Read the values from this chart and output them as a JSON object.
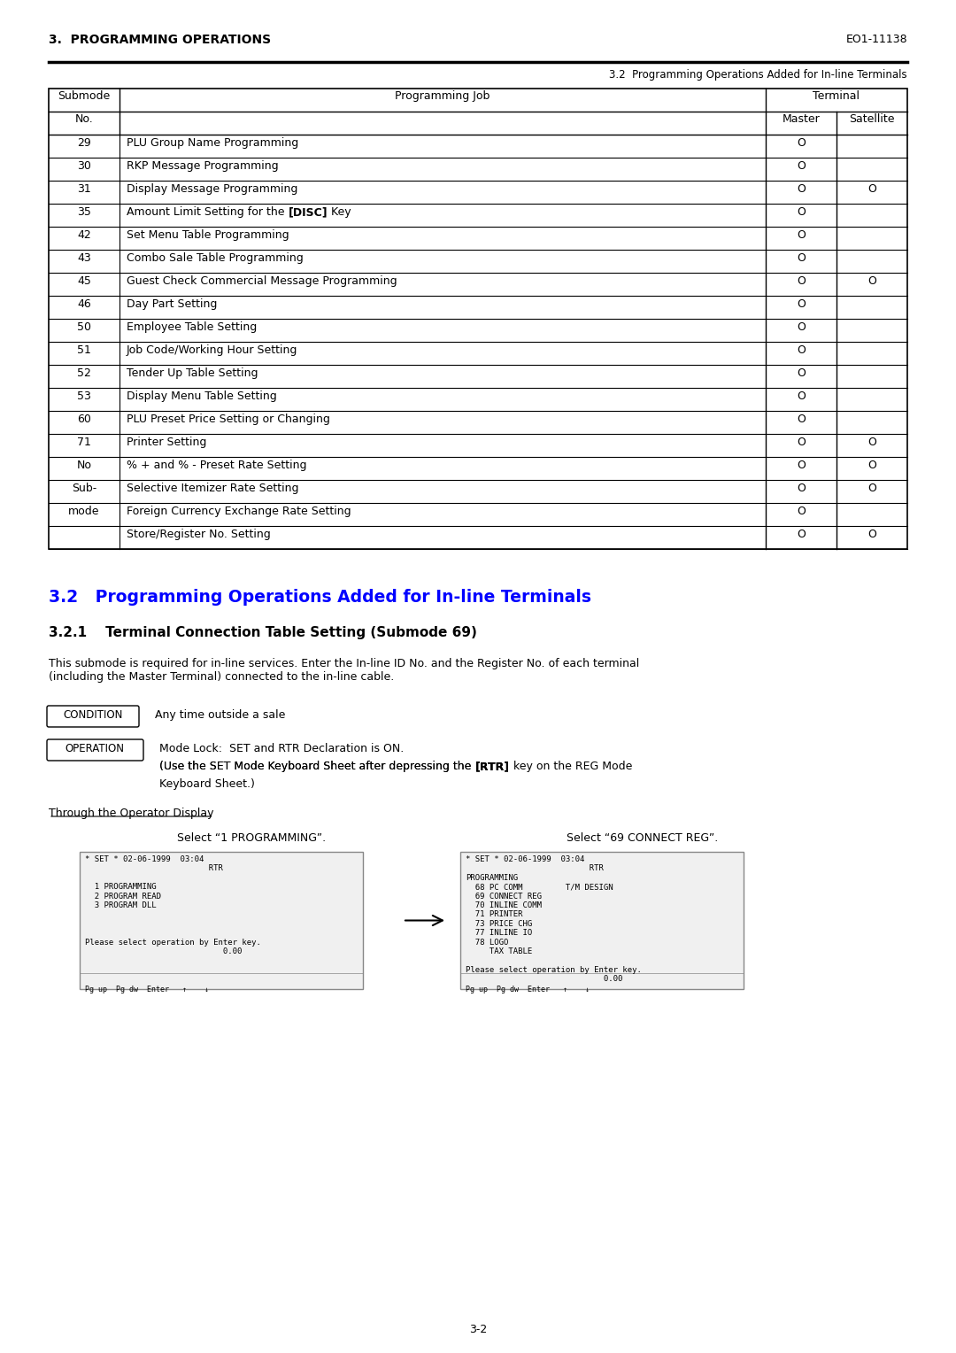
{
  "header_left": "3.  PROGRAMMING OPERATIONS",
  "header_right": "EO1-11138",
  "subheader": "3.2  Programming Operations Added for In-line Terminals",
  "table_header_row1": [
    "Submode",
    "Programming Job",
    "Terminal"
  ],
  "table_header_row2": [
    "No.",
    "",
    "Master",
    "Satellite"
  ],
  "table_rows": [
    [
      "29",
      "PLU Group Name Programming",
      "O",
      ""
    ],
    [
      "30",
      "RKP Message Programming",
      "O",
      ""
    ],
    [
      "31",
      "Display Message Programming",
      "O",
      "O"
    ],
    [
      "35",
      "Amount Limit Setting for the [DISC] Key",
      "O",
      ""
    ],
    [
      "42",
      "Set Menu Table Programming",
      "O",
      ""
    ],
    [
      "43",
      "Combo Sale Table Programming",
      "O",
      ""
    ],
    [
      "45",
      "Guest Check Commercial Message Programming",
      "O",
      "O"
    ],
    [
      "46",
      "Day Part Setting",
      "O",
      ""
    ],
    [
      "50",
      "Employee Table Setting",
      "O",
      ""
    ],
    [
      "51",
      "Job Code/Working Hour Setting",
      "O",
      ""
    ],
    [
      "52",
      "Tender Up Table Setting",
      "O",
      ""
    ],
    [
      "53",
      "Display Menu Table Setting",
      "O",
      ""
    ],
    [
      "60",
      "PLU Preset Price Setting or Changing",
      "O",
      ""
    ],
    [
      "71",
      "Printer Setting",
      "O",
      "O"
    ],
    [
      "No",
      "% + and % - Preset Rate Setting",
      "O",
      "O"
    ],
    [
      "Sub-",
      "Selective Itemizer Rate Setting",
      "O",
      "O"
    ],
    [
      "mode",
      "Foreign Currency Exchange Rate Setting",
      "O",
      ""
    ],
    [
      "",
      "Store/Register No. Setting",
      "O",
      "O"
    ]
  ],
  "bold_items": [
    "[DISC]"
  ],
  "section_title": "3.2   Programming Operations Added for In-line Terminals",
  "subsection_title": "3.2.1    Terminal Connection Table Setting (Submode 69)",
  "body_text1": "This submode is required for in-line services. Enter the In-line ID No. and the Register No. of each terminal\n(including the Master Terminal) connected to the in-line cable.",
  "condition_label": "CONDITION",
  "condition_text": "Any time outside a sale",
  "operation_label": "OPERATION",
  "operation_text1": "Mode Lock:  SET and RTR Declaration is ON.",
  "operation_text2": "(Use the SET Mode Keyboard Sheet after depressing the [RTR] key on the REG Mode\nKeyboard Sheet.)",
  "through_label": "Through the Operator Display",
  "select_left": "Select “1 PROGRAMMING”.",
  "select_right": "Select “69 CONNECT REG”.",
  "screen_left": "* SET * 02-06-1999 03:04\n                          RTR\n\n  1 PROGRAMMING\n  2 PROGRAM READ\n  3 PROGRAM DLL\n\n\n\n\nPlease select operation by Enter key.\n                             0.00\n\nPg up  Pg dw  Enter   ↑    ↓",
  "screen_right": "* SET * 02-06-1999 03:04\n                          RTR\nPROGRAMMING\n  68 PC COMM         T/M DESIGN\n  69 CONNECT REG\n  70 INLINE COMM\n  71 PRINTER\n  73 PRICE CHG\n  77 INLINE IO\n  78 LOGO\n     TAX TABLE\n\nPlease select operation by Enter key.\n                             0.00\n\nPg up  Pg dw  Enter   ↑    ↓",
  "page_number": "3-2",
  "bg_color": "#ffffff",
  "section_color": "#0000ff",
  "text_color": "#000000",
  "table_border_color": "#000000",
  "screen_bg": "#e8e8e8"
}
